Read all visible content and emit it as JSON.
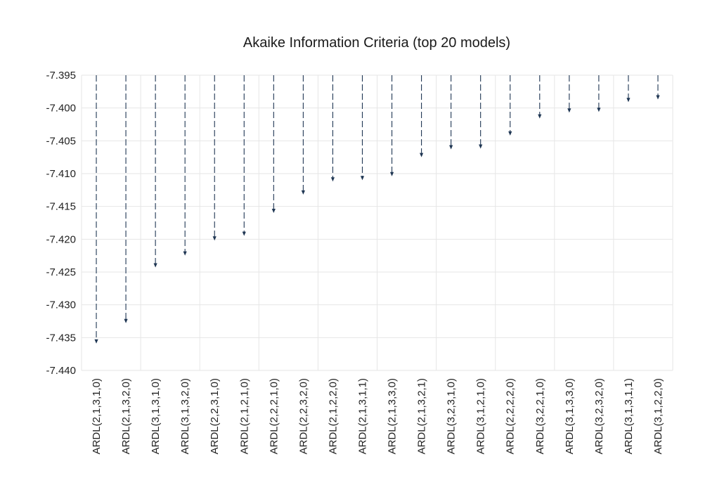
{
  "chart_data": {
    "type": "bar",
    "title": "Akaike Information Criteria (top 20 models)",
    "xlabel": "",
    "ylabel": "",
    "ylim": [
      -7.44,
      -7.395
    ],
    "yticks": [
      -7.395,
      -7.4,
      -7.405,
      -7.41,
      -7.415,
      -7.42,
      -7.425,
      -7.43,
      -7.435,
      -7.44
    ],
    "ytick_labels": [
      "-7.395",
      "-7.400",
      "-7.405",
      "-7.410",
      "-7.415",
      "-7.420",
      "-7.425",
      "-7.430",
      "-7.435",
      "-7.440"
    ],
    "categories": [
      "ARDL(2,1,3,1,0)",
      "ARDL(2,1,3,2,0)",
      "ARDL(3,1,3,1,0)",
      "ARDL(3,1,3,2,0)",
      "ARDL(2,2,3,1,0)",
      "ARDL(2,1,2,1,0)",
      "ARDL(2,2,2,1,0)",
      "ARDL(2,2,3,2,0)",
      "ARDL(2,1,2,2,0)",
      "ARDL(2,1,3,1,1)",
      "ARDL(2,1,3,3,0)",
      "ARDL(2,1,3,2,1)",
      "ARDL(3,2,3,1,0)",
      "ARDL(3,1,2,1,0)",
      "ARDL(2,2,2,2,0)",
      "ARDL(3,2,2,1,0)",
      "ARDL(3,1,3,3,0)",
      "ARDL(3,2,3,2,0)",
      "ARDL(3,1,3,1,1)",
      "ARDL(3,1,2,2,0)"
    ],
    "values": [
      -7.4359,
      -7.4328,
      -7.4243,
      -7.4225,
      -7.4202,
      -7.4195,
      -7.416,
      -7.4132,
      -7.4112,
      -7.411,
      -7.4104,
      -7.4075,
      -7.4063,
      -7.4062,
      -7.4042,
      -7.4016,
      -7.4007,
      -7.4006,
      -7.3991,
      -7.3987
    ],
    "bar_baseline": -7.395,
    "bar_style": "dashed-arrow",
    "bar_color": "#1f3653",
    "grid": true,
    "legend": "none"
  }
}
